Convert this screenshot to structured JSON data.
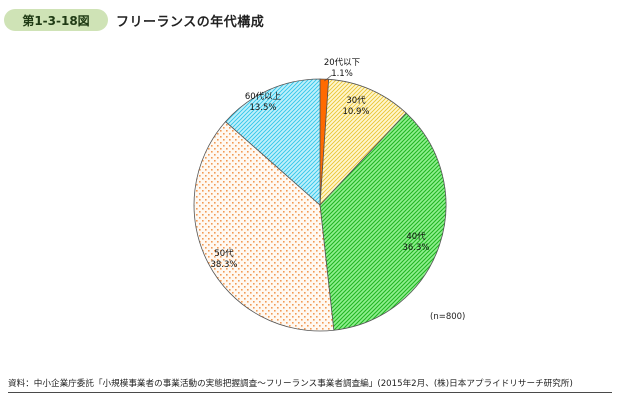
{
  "header": {
    "badge": "第1-3-18図",
    "title": "フリーランスの年代構成"
  },
  "note": "(n=800)",
  "source": "資料：中小企業庁委託「小規模事業者の事業活動の実態把握調査～フリーランス事業者調査編」(2015年2月、(株)日本アプライドリサーチ研究所)",
  "colors": {
    "20s": "#ff6a00",
    "30s": "#ffe98a",
    "40s": "#4fd44f",
    "50s": "#f6a56a",
    "60s": "#54d6f2"
  },
  "chart_data": {
    "type": "pie",
    "start": "12 o'clock, clockwise",
    "slices": [
      {
        "key": "20s",
        "label": "20代以下",
        "value": 1.1,
        "value_label": "1.1%"
      },
      {
        "key": "30s",
        "label": "30代",
        "value": 10.9,
        "value_label": "10.9%"
      },
      {
        "key": "40s",
        "label": "40代",
        "value": 36.3,
        "value_label": "36.3%"
      },
      {
        "key": "50s",
        "label": "50代",
        "value": 38.3,
        "value_label": "38.3%"
      },
      {
        "key": "60s",
        "label": "60代以上",
        "value": 13.5,
        "value_label": "13.5%"
      }
    ]
  }
}
